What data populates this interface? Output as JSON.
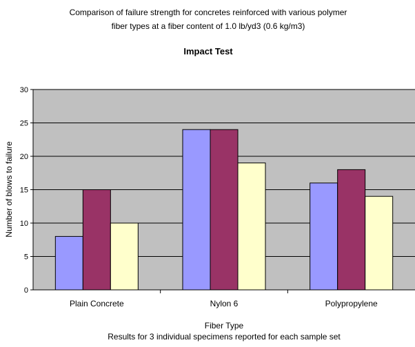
{
  "chart_data": {
    "type": "bar",
    "title": "Comparison of failure strength for concretes reinforced with various polymer fiber types at a fiber content of 1.0 lb/yd3 (0.6 kg/m3)",
    "title_lines": [
      "Comparison of failure strength for concretes reinforced with various polymer",
      "fiber types at a fiber content of 1.0 lb/yd3 (0.6 kg/m3)"
    ],
    "subtitle": "Impact Test",
    "xlabel": "Fiber Type",
    "ylabel": "Number of blows to failure",
    "footnote": "Results for 3 individual specimens reported for each sample set",
    "categories": [
      "Plain Concrete",
      "Nylon 6",
      "Polypropylene"
    ],
    "series": [
      {
        "values": [
          8,
          24,
          16
        ],
        "color": "#9999ff"
      },
      {
        "values": [
          15,
          24,
          18
        ],
        "color": "#993366"
      },
      {
        "values": [
          10,
          19,
          14
        ],
        "color": "#ffffcc"
      }
    ],
    "ylim": [
      0,
      30
    ],
    "yticks": [
      0,
      5,
      10,
      15,
      20,
      25,
      30
    ],
    "grid": true,
    "plot_background": "#c0c0c0",
    "gridline_color": "#000000",
    "bar_outline_color": "#000000",
    "legend": "none"
  }
}
